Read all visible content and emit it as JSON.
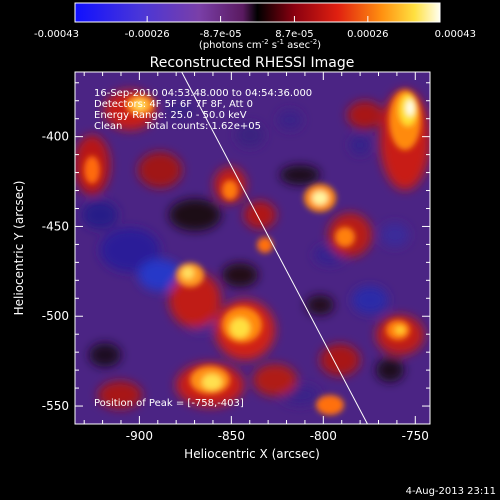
{
  "colorbar": {
    "ticks": [
      "-0.00043",
      "-0.00026",
      "-8.7e-05",
      "8.7e-05",
      "0.00026",
      "0.00043"
    ],
    "tick_values": [
      -0.00043,
      -0.00026,
      -8.7e-05,
      8.7e-05,
      0.00026,
      0.00043
    ],
    "range": [
      -0.00043,
      0.00043
    ],
    "unit_prefix": "(photons cm",
    "unit_exp1": "-2",
    "unit_mid": " s",
    "unit_exp2": "-1",
    "unit_mid2": " asec",
    "unit_exp3": "-2",
    "unit_suffix": ")"
  },
  "chart_data": {
    "type": "heatmap",
    "title": "Reconstructed RHESSI Image",
    "xlabel": "Heliocentric X (arcsec)",
    "ylabel": "Heliocentric Y (arcsec)",
    "xlim": [
      -935,
      -742
    ],
    "ylim": [
      -560,
      -364
    ],
    "x_ticks": [
      -900,
      -850,
      -800,
      -750
    ],
    "x_tick_labels": [
      "-900",
      "-850",
      "-800",
      "-750"
    ],
    "y_ticks": [
      -400,
      -450,
      -500,
      -550
    ],
    "y_tick_labels": [
      "-400",
      "-450",
      "-500",
      "-550"
    ],
    "annotations": {
      "time": "16-Sep-2010 04:53:48.000 to 04:54:36.000",
      "detectors": "Detectors: 4F 5F 6F 7F 8F, Att 0",
      "energy": "Energy Range: 25.0 - 50.0 keV",
      "method": "Clean",
      "counts": "Total counts: 1.62e+05",
      "peak_label": "Position of Peak = ",
      "peak_value": "[-758,-403]"
    },
    "limb_line": {
      "x": [
        -877,
        -776
      ],
      "y": [
        -364,
        -560
      ]
    },
    "peak_position": [
      -758,
      -403
    ]
  },
  "footer": {
    "date": "4-Aug-2013 23:11"
  }
}
